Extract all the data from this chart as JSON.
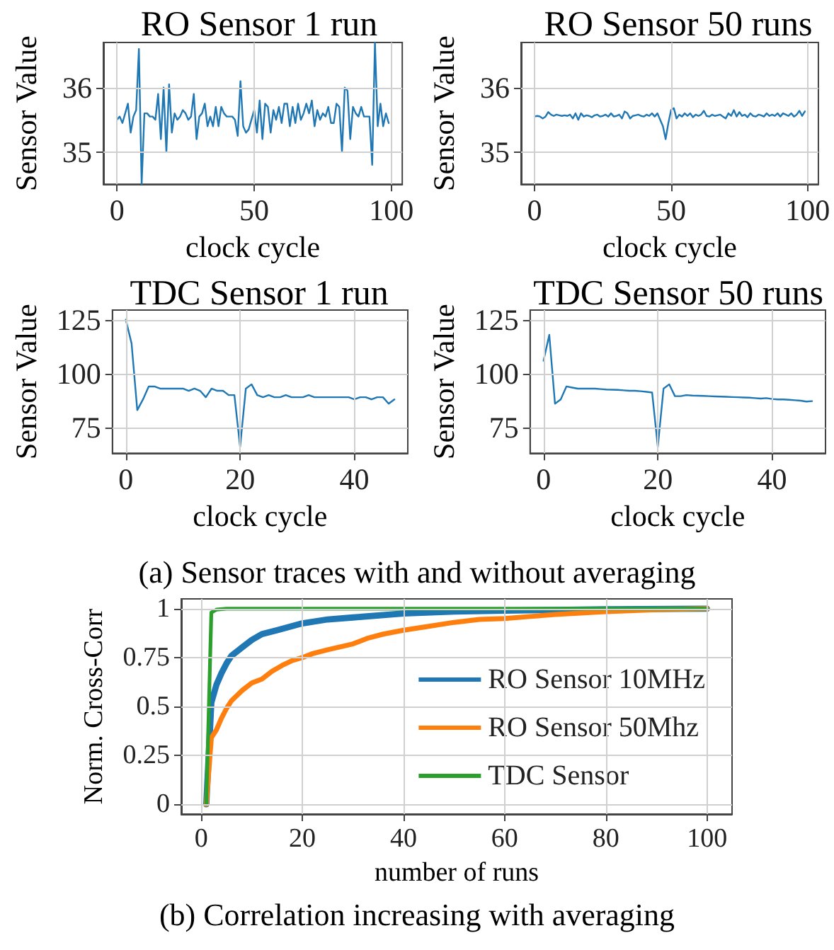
{
  "chart_data": [
    {
      "type": "line",
      "title": "RO Sensor 1 run",
      "xlabel": "clock cycle",
      "ylabel": "Sensor Value",
      "xlim": [
        -4.95,
        103.95
      ],
      "ylim": [
        34.5,
        36.7
      ],
      "xticks": [
        0,
        50,
        100
      ],
      "yticks": [
        35,
        36
      ],
      "grid": true,
      "x": [
        0,
        1,
        2,
        3,
        4,
        5,
        6,
        7,
        8,
        9,
        10,
        11,
        12,
        13,
        14,
        15,
        16,
        17,
        18,
        19,
        20,
        21,
        22,
        23,
        24,
        25,
        26,
        27,
        28,
        29,
        30,
        31,
        32,
        33,
        34,
        35,
        36,
        37,
        38,
        39,
        40,
        41,
        42,
        43,
        44,
        45,
        46,
        47,
        48,
        49,
        50,
        51,
        52,
        53,
        54,
        55,
        56,
        57,
        58,
        59,
        60,
        61,
        62,
        63,
        64,
        65,
        66,
        67,
        68,
        69,
        70,
        71,
        72,
        73,
        74,
        75,
        76,
        77,
        78,
        79,
        80,
        81,
        82,
        83,
        84,
        85,
        86,
        87,
        88,
        89,
        90,
        91,
        92,
        93,
        94,
        95,
        96,
        97,
        98,
        99
      ],
      "series": [
        {
          "color": "#1f77b4",
          "values": [
            35.5,
            35.55,
            35.45,
            35.6,
            35.75,
            35.3,
            35.55,
            35.65,
            36.6,
            34.5,
            35.6,
            35.6,
            35.55,
            35.55,
            35.5,
            35.9,
            35.2,
            36.0,
            35.0,
            36.05,
            35.3,
            35.6,
            35.5,
            35.55,
            35.65,
            35.6,
            35.5,
            35.55,
            35.9,
            35.2,
            35.55,
            35.6,
            35.75,
            35.4,
            35.55,
            35.4,
            35.7,
            35.4,
            35.7,
            35.6,
            35.55,
            35.55,
            35.55,
            35.5,
            35.25,
            36.1,
            35.4,
            35.3,
            35.35,
            35.5,
            35.65,
            35.3,
            35.8,
            35.2,
            35.75,
            35.7,
            35.3,
            35.65,
            35.5,
            35.7,
            35.45,
            35.75,
            35.75,
            35.4,
            35.7,
            35.45,
            35.75,
            35.5,
            35.6,
            35.75,
            35.6,
            35.8,
            35.4,
            35.65,
            35.5,
            35.6,
            35.55,
            35.7,
            35.45,
            35.45,
            35.75,
            35.7,
            35.0,
            36.0,
            35.95,
            35.2,
            35.7,
            35.6,
            35.55,
            35.7,
            35.55,
            35.55,
            35.55,
            34.8,
            36.7,
            35.4,
            35.75,
            35.4,
            35.6,
            35.45
          ]
        }
      ]
    },
    {
      "type": "line",
      "title": "RO Sensor 50 runs",
      "xlabel": "clock cycle",
      "ylabel": "Sensor Value",
      "xlim": [
        -4.95,
        103.95
      ],
      "ylim": [
        34.5,
        36.7
      ],
      "xticks": [
        0,
        50,
        100
      ],
      "yticks": [
        35,
        36
      ],
      "grid": true,
      "x": [
        0,
        1,
        2,
        3,
        4,
        5,
        6,
        7,
        8,
        9,
        10,
        11,
        12,
        13,
        14,
        15,
        16,
        17,
        18,
        19,
        20,
        21,
        22,
        23,
        24,
        25,
        26,
        27,
        28,
        29,
        30,
        31,
        32,
        33,
        34,
        35,
        36,
        37,
        38,
        39,
        40,
        41,
        42,
        43,
        44,
        45,
        46,
        47,
        48,
        49,
        50,
        51,
        52,
        53,
        54,
        55,
        56,
        57,
        58,
        59,
        60,
        61,
        62,
        63,
        64,
        65,
        66,
        67,
        68,
        69,
        70,
        71,
        72,
        73,
        74,
        75,
        76,
        77,
        78,
        79,
        80,
        81,
        82,
        83,
        84,
        85,
        86,
        87,
        88,
        89,
        90,
        91,
        92,
        93,
        94,
        95,
        96,
        97,
        98,
        99
      ],
      "series": [
        {
          "color": "#1f77b4",
          "values": [
            35.55,
            35.56,
            35.55,
            35.52,
            35.55,
            35.62,
            35.58,
            35.56,
            35.58,
            35.57,
            35.56,
            35.57,
            35.56,
            35.58,
            35.52,
            35.6,
            35.5,
            35.6,
            35.55,
            35.57,
            35.56,
            35.54,
            35.57,
            35.58,
            35.55,
            35.56,
            35.58,
            35.55,
            35.6,
            35.55,
            35.56,
            35.58,
            35.52,
            35.63,
            35.6,
            35.52,
            35.56,
            35.57,
            35.58,
            35.56,
            35.55,
            35.58,
            35.56,
            35.6,
            35.55,
            35.6,
            35.5,
            35.4,
            35.2,
            35.45,
            35.65,
            35.68,
            35.52,
            35.58,
            35.55,
            35.6,
            35.56,
            35.6,
            35.54,
            35.58,
            35.56,
            35.58,
            35.64,
            35.56,
            35.55,
            35.58,
            35.56,
            35.57,
            35.58,
            35.55,
            35.52,
            35.6,
            35.56,
            35.65,
            35.55,
            35.62,
            35.56,
            35.58,
            35.54,
            35.6,
            35.56,
            35.55,
            35.58,
            35.57,
            35.55,
            35.6,
            35.56,
            35.58,
            35.56,
            35.6,
            35.55,
            35.6,
            35.58,
            35.56,
            35.6,
            35.55,
            35.58,
            35.64,
            35.56,
            35.63
          ]
        }
      ]
    },
    {
      "type": "line",
      "title": "TDC Sensor 1 run",
      "xlabel": "clock cycle",
      "ylabel": "Sensor Value",
      "xlim": [
        -2.35,
        49.35
      ],
      "ylim": [
        63,
        129.5
      ],
      "xticks": [
        0,
        20,
        40
      ],
      "yticks": [
        75,
        100,
        125
      ],
      "grid": true,
      "x": [
        0,
        1,
        2,
        3,
        4,
        5,
        6,
        7,
        8,
        9,
        10,
        11,
        12,
        13,
        14,
        15,
        16,
        17,
        18,
        19,
        20,
        21,
        22,
        23,
        24,
        25,
        26,
        27,
        28,
        29,
        30,
        31,
        32,
        33,
        34,
        35,
        36,
        37,
        38,
        39,
        40,
        41,
        42,
        43,
        44,
        45,
        46,
        47
      ],
      "series": [
        {
          "color": "#1f77b4",
          "values": [
            125,
            114,
            83,
            88,
            94,
            94,
            93,
            93,
            93,
            93,
            93,
            92,
            93,
            92,
            89,
            93,
            92,
            92,
            90,
            90,
            66,
            93,
            95,
            90,
            89,
            90,
            89,
            89,
            90,
            89,
            89,
            89,
            90,
            89,
            89,
            89,
            89,
            89,
            89,
            89,
            88,
            89,
            89,
            88,
            89,
            89,
            86,
            88
          ]
        }
      ]
    },
    {
      "type": "line",
      "title": "TDC Sensor 50 runs",
      "xlabel": "clock cycle",
      "ylabel": "Sensor Value",
      "xlim": [
        -2.35,
        49.35
      ],
      "ylim": [
        63,
        129.5
      ],
      "xticks": [
        0,
        20,
        40
      ],
      "yticks": [
        75,
        100,
        125
      ],
      "grid": true,
      "x": [
        0,
        1,
        2,
        3,
        4,
        5,
        6,
        7,
        8,
        9,
        10,
        11,
        12,
        13,
        14,
        15,
        16,
        17,
        18,
        19,
        20,
        21,
        22,
        23,
        24,
        25,
        26,
        27,
        28,
        29,
        30,
        31,
        32,
        33,
        34,
        35,
        36,
        37,
        38,
        39,
        40,
        41,
        42,
        43,
        44,
        45,
        46,
        47
      ],
      "series": [
        {
          "color": "#1f77b4",
          "values": [
            106,
            118,
            86,
            88,
            94,
            93.5,
            93,
            93,
            93,
            93,
            92.8,
            92.6,
            92.5,
            92.4,
            92.2,
            92,
            92,
            91.8,
            91.5,
            91.2,
            66,
            93,
            95,
            89.5,
            89.5,
            90,
            89.8,
            89.7,
            89.6,
            89.5,
            89.4,
            89.3,
            89.2,
            89.1,
            89,
            88.9,
            88.8,
            88.6,
            88.4,
            88.6,
            88.2,
            88,
            88,
            87.8,
            87.6,
            87.4,
            87,
            87.2
          ]
        }
      ]
    },
    {
      "type": "line",
      "ylabel": "Norm. Cross-Corr",
      "xlabel": "number of runs",
      "xlim": [
        -3.95,
        104.95
      ],
      "ylim": [
        -0.05,
        1.05
      ],
      "xticks": [
        0,
        20,
        40,
        60,
        80,
        100
      ],
      "yticks": [
        0,
        0.25,
        0.5,
        0.75,
        1
      ],
      "grid": true,
      "legend": "bottom right",
      "annotations": [
        "(a) Sensor traces with and without averaging",
        "(b) Correlation increasing with averaging"
      ],
      "series": [
        {
          "name": "RO Sensor 10MHz",
          "color": "#1f77b4",
          "x": [
            1,
            2,
            3,
            4,
            5,
            6,
            8,
            10,
            12,
            15,
            20,
            25,
            30,
            40,
            50,
            60,
            80,
            100
          ],
          "values": [
            0,
            0.52,
            0.61,
            0.67,
            0.72,
            0.76,
            0.8,
            0.84,
            0.87,
            0.89,
            0.925,
            0.945,
            0.955,
            0.975,
            0.985,
            0.99,
            0.997,
            1
          ]
        },
        {
          "name": "RO Sensor 50Mhz",
          "color": "#ff7f0e",
          "x": [
            1,
            2,
            3,
            4,
            5,
            6,
            8,
            10,
            11,
            12,
            14,
            16,
            18,
            20,
            22,
            25,
            30,
            33,
            36,
            40,
            45,
            50,
            55,
            60,
            65,
            70,
            80,
            90,
            100
          ],
          "values": [
            0,
            0.34,
            0.38,
            0.44,
            0.49,
            0.53,
            0.58,
            0.62,
            0.63,
            0.64,
            0.68,
            0.71,
            0.735,
            0.75,
            0.77,
            0.79,
            0.82,
            0.85,
            0.87,
            0.89,
            0.91,
            0.93,
            0.945,
            0.95,
            0.96,
            0.97,
            0.985,
            0.995,
            1
          ]
        },
        {
          "name": "TDC Sensor",
          "color": "#2ca02c",
          "x": [
            1,
            2,
            3,
            5,
            100
          ],
          "values": [
            0,
            0.98,
            0.995,
            1,
            1
          ]
        }
      ]
    }
  ]
}
